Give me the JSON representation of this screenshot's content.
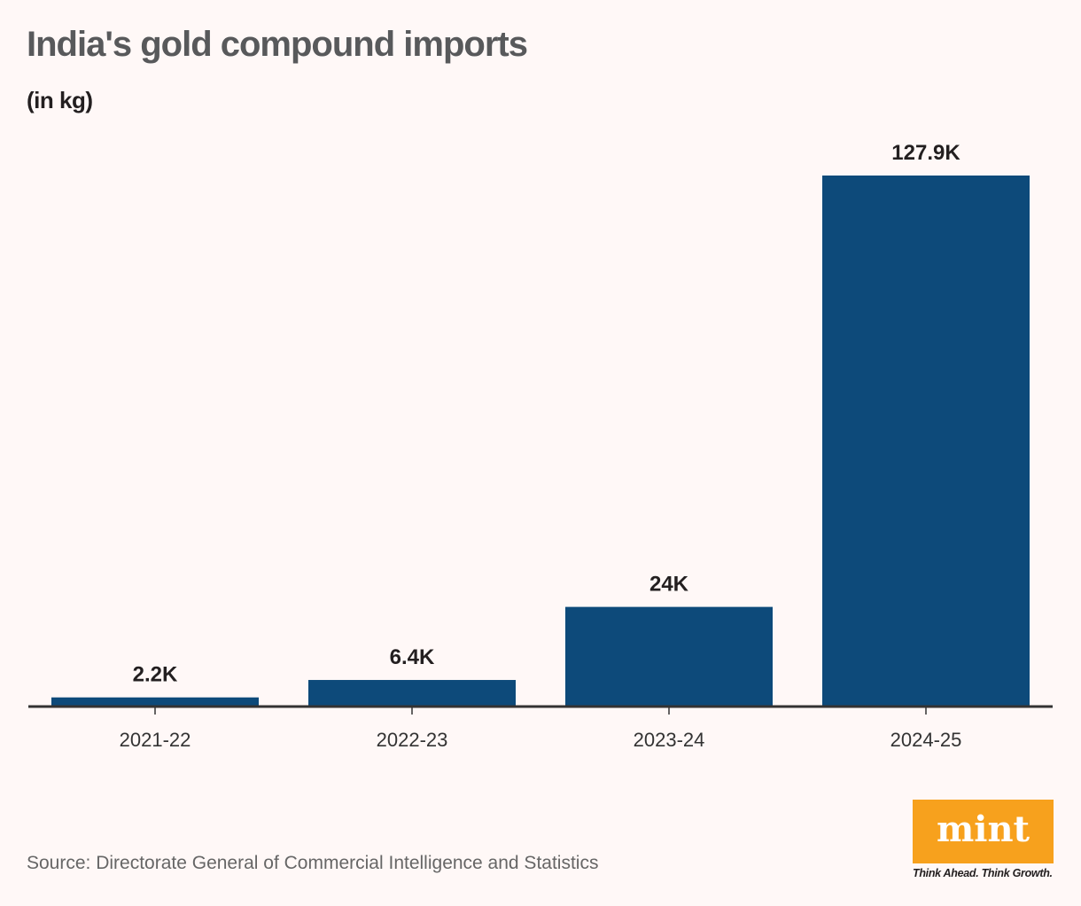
{
  "chart_data": {
    "type": "bar",
    "title": "India's gold compound imports",
    "subtitle": "(in kg)",
    "categories": [
      "2021-22",
      "2022-23",
      "2023-24",
      "2024-25"
    ],
    "values": [
      2.2,
      6.4,
      24,
      127.9
    ],
    "value_labels": [
      "2.2K",
      "6.4K",
      "24K",
      "127.9K"
    ],
    "unit": "thousand kg",
    "xlabel": "",
    "ylabel": "",
    "ylim": [
      0,
      127.9
    ],
    "grid": false,
    "bar_color": "#0d4a7a"
  },
  "source": "Source: Directorate General of Commercial Intelligence and Statistics",
  "logo": {
    "text": "mint",
    "tagline": "Think Ahead. Think Growth.",
    "color": "#f7a11d"
  }
}
